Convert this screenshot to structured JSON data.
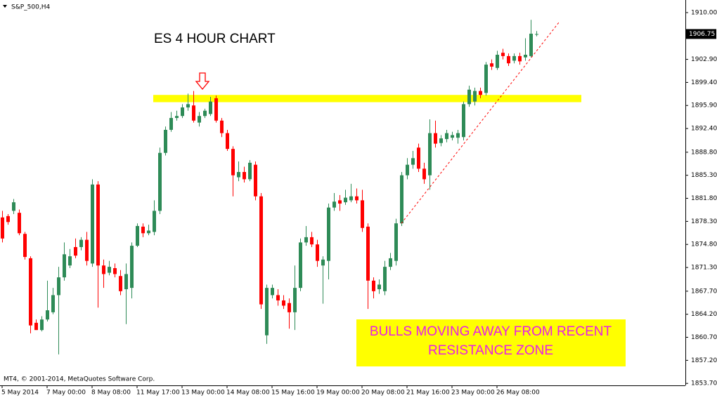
{
  "chart_data": {
    "type": "candlestick",
    "title": "S&P_500,H4",
    "annotation": "ES 4 HOUR CHART",
    "note_lines": [
      "BULLS MOVING AWAY FROM RECENT",
      "RESISTANCE ZONE"
    ],
    "copyright": "MT4, © 2001-2014, MetaQuotes Software Corp.",
    "up_color": "#2e8b57",
    "down_color": "#ff0000",
    "zone_color": "#ffff00",
    "note_color": "#e81ee8",
    "ylim": [
      1853.4,
      1911.7
    ],
    "yticks": [
      {
        "value": 1910.0,
        "label": "1910.00"
      },
      {
        "value": 1902.9,
        "label": "1902.90"
      },
      {
        "value": 1899.4,
        "label": "1899.40"
      },
      {
        "value": 1895.9,
        "label": "1895.90"
      },
      {
        "value": 1892.4,
        "label": "1892.40"
      },
      {
        "value": 1888.8,
        "label": "1888.80"
      },
      {
        "value": 1885.3,
        "label": "1885.30"
      },
      {
        "value": 1881.8,
        "label": "1881.80"
      },
      {
        "value": 1878.3,
        "label": "1878.30"
      },
      {
        "value": 1874.8,
        "label": "1874.80"
      },
      {
        "value": 1871.3,
        "label": "1871.30"
      },
      {
        "value": 1867.7,
        "label": "1867.70"
      },
      {
        "value": 1864.2,
        "label": "1864.20"
      },
      {
        "value": 1860.7,
        "label": "1860.70"
      },
      {
        "value": 1857.2,
        "label": "1857.20"
      },
      {
        "value": 1853.7,
        "label": "1853.70"
      }
    ],
    "current_price": {
      "value": 1906.75,
      "label": "1906.75"
    },
    "resistance_zone": {
      "from": 1896.4,
      "to": 1897.5
    },
    "trendline": {
      "start_index": 71,
      "start_price": 1878.0,
      "end_index": 99,
      "end_price": 1908.5
    },
    "categories": [
      "5 May 2014",
      null,
      null,
      null,
      null,
      null,
      null,
      null,
      "7 May 00:00",
      null,
      null,
      null,
      null,
      null,
      null,
      null,
      "8 May 08:00",
      null,
      null,
      null,
      null,
      null,
      null,
      null,
      "11 May 17:00",
      null,
      null,
      null,
      null,
      null,
      null,
      null,
      "13 May 00:00",
      null,
      null,
      null,
      null,
      null,
      null,
      null,
      "14 May 08:00",
      null,
      null,
      null,
      null,
      null,
      null,
      null,
      "15 May 16:00",
      null,
      null,
      null,
      null,
      null,
      null,
      null,
      "19 May 00:00",
      null,
      null,
      null,
      null,
      null,
      null,
      null,
      "20 May 08:00",
      null,
      null,
      null,
      null,
      null,
      null,
      null,
      "21 May 16:00",
      null,
      null,
      null,
      null,
      null,
      null,
      null,
      "23 May 00:00",
      null,
      null,
      null,
      null,
      null,
      null,
      null,
      "26 May 08:00",
      null,
      null,
      null,
      null,
      null,
      null,
      null
    ],
    "open": [
      1878.9,
      1879.1,
      1879.9,
      1879.6,
      1876.4,
      1872.7,
      1862.9,
      1861.8,
      1863.4,
      1864.5,
      1867.1,
      1869.8,
      1871.6,
      1874.4,
      1874.4,
      1875.5,
      1871.9,
      1883.9,
      1871.6,
      1870.5,
      1871.2,
      1870.0,
      1868.0,
      1868.2,
      1874.6,
      1877.5,
      1876.5,
      1876.7,
      1879.9,
      1888.7,
      1892.2,
      1894.0,
      1894.3,
      1895.6,
      1895.9,
      1893.3,
      1894.3,
      1894.6,
      1897.0,
      1893.6,
      1891.7,
      1889.3,
      1885.0,
      1885.8,
      1884.7,
      1886.9,
      1882.1,
      1861.0,
      1867.1,
      1867.1,
      1866.3,
      1865.9,
      1864.5,
      1868.2,
      1875.1,
      1875.9,
      1874.8,
      1871.6,
      1872.3,
      1880.4,
      1881.5,
      1881.2,
      1881.5,
      1882.1,
      1881.5,
      1877.5,
      1869.3,
      1868.0,
      1867.7,
      1871.4,
      1872.3,
      1878.0,
      1885.3,
      1886.9,
      1889.5,
      1886.3,
      1885.3,
      1891.7,
      1890.2,
      1890.8,
      1891.0,
      1891.0,
      1891.1,
      1896.1,
      1896.5,
      1898.1,
      1897.8,
      1902.3,
      1901.6,
      1903.9,
      1903.4,
      1902.7,
      1903.4,
      1903.2,
      1903.4,
      1906.7
    ],
    "high": [
      1879.9,
      1879.4,
      1881.7,
      1880.1,
      1876.7,
      1873.0,
      1863.4,
      1863.9,
      1869.3,
      1868.2,
      1871.4,
      1875.1,
      1874.1,
      1875.7,
      1875.9,
      1876.7,
      1884.7,
      1884.4,
      1872.5,
      1872.3,
      1871.9,
      1870.9,
      1871.9,
      1875.1,
      1878.0,
      1878.0,
      1877.8,
      1881.5,
      1889.5,
      1892.7,
      1894.9,
      1895.1,
      1896.1,
      1897.7,
      1898.1,
      1894.9,
      1895.4,
      1897.2,
      1897.4,
      1894.0,
      1892.2,
      1889.7,
      1887.4,
      1886.6,
      1887.6,
      1887.4,
      1882.6,
      1868.7,
      1868.7,
      1868.0,
      1867.1,
      1866.6,
      1871.6,
      1875.7,
      1877.6,
      1876.7,
      1875.5,
      1873.0,
      1881.0,
      1882.6,
      1882.3,
      1883.1,
      1884.0,
      1883.3,
      1883.1,
      1878.0,
      1869.8,
      1869.5,
      1872.3,
      1873.5,
      1878.7,
      1885.8,
      1887.9,
      1889.0,
      1890.1,
      1887.2,
      1893.8,
      1893.6,
      1891.4,
      1892.2,
      1891.9,
      1892.2,
      1896.5,
      1898.9,
      1898.6,
      1898.6,
      1902.5,
      1902.9,
      1904.2,
      1904.5,
      1903.8,
      1903.8,
      1903.9,
      1906.1,
      1908.9,
      1907.2
    ],
    "low": [
      1875.1,
      1877.8,
      1879.4,
      1876.2,
      1872.5,
      1861.3,
      1861.8,
      1861.6,
      1863.1,
      1864.2,
      1858.1,
      1869.3,
      1871.2,
      1872.7,
      1873.9,
      1871.6,
      1871.4,
      1865.2,
      1868.2,
      1870.1,
      1869.8,
      1867.1,
      1862.7,
      1866.6,
      1874.4,
      1875.9,
      1876.2,
      1876.2,
      1879.4,
      1888.3,
      1891.9,
      1893.6,
      1894.0,
      1895.1,
      1893.3,
      1892.7,
      1894.0,
      1894.3,
      1893.3,
      1891.1,
      1889.0,
      1882.1,
      1884.4,
      1884.2,
      1884.4,
      1881.5,
      1865.0,
      1859.7,
      1866.6,
      1865.5,
      1865.0,
      1862.0,
      1861.8,
      1867.7,
      1874.6,
      1874.4,
      1871.4,
      1865.8,
      1869.5,
      1879.9,
      1879.9,
      1880.8,
      1881.2,
      1881.0,
      1876.7,
      1865.0,
      1866.6,
      1867.3,
      1867.1,
      1870.9,
      1871.6,
      1877.6,
      1884.7,
      1886.3,
      1885.8,
      1884.0,
      1883.1,
      1889.5,
      1889.7,
      1890.3,
      1890.6,
      1890.1,
      1890.6,
      1895.7,
      1895.9,
      1897.0,
      1897.4,
      1901.3,
      1901.3,
      1902.9,
      1901.9,
      1902.3,
      1902.1,
      1902.7,
      1903.2,
      1906.4
    ],
    "close": [
      1875.7,
      1878.2,
      1881.2,
      1876.5,
      1872.9,
      1862.5,
      1861.8,
      1863.4,
      1864.8,
      1867.1,
      1869.8,
      1873.3,
      1873.0,
      1873.1,
      1875.5,
      1872.3,
      1883.9,
      1871.6,
      1870.3,
      1871.4,
      1870.3,
      1867.7,
      1870.3,
      1874.6,
      1877.6,
      1876.5,
      1876.9,
      1879.9,
      1888.7,
      1892.2,
      1894.0,
      1894.3,
      1895.6,
      1896.1,
      1893.6,
      1894.3,
      1895.1,
      1896.5,
      1893.6,
      1891.7,
      1889.3,
      1885.3,
      1885.8,
      1884.7,
      1887.2,
      1882.1,
      1865.7,
      1868.2,
      1868.2,
      1866.3,
      1865.5,
      1864.5,
      1868.2,
      1875.1,
      1875.9,
      1874.8,
      1872.3,
      1872.5,
      1880.4,
      1881.3,
      1881.0,
      1881.9,
      1882.1,
      1881.5,
      1877.3,
      1869.3,
      1867.7,
      1868.7,
      1871.4,
      1872.7,
      1878.0,
      1885.3,
      1886.9,
      1887.9,
      1886.3,
      1884.7,
      1891.7,
      1890.1,
      1890.9,
      1891.7,
      1891.4,
      1891.7,
      1896.1,
      1898.3,
      1898.1,
      1897.5,
      1902.1,
      1901.8,
      1903.6,
      1903.4,
      1902.3,
      1903.4,
      1902.6,
      1903.6,
      1906.8,
      1906.75
    ]
  }
}
